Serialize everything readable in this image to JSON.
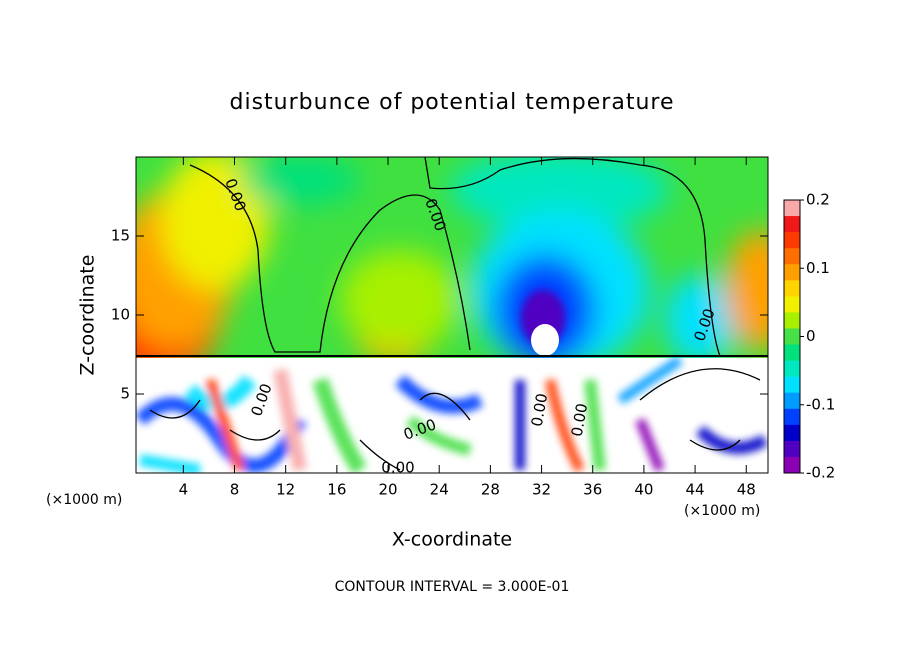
{
  "chart_data": {
    "type": "contour",
    "title": "disturbunce of potential temperature",
    "x_label": "X-coordinate",
    "y_label": "Z-coordinate",
    "x_unit_label": "(×1000 m)",
    "y_unit_label": "(×1000 m)",
    "footer": "CONTOUR INTERVAL = 3.000E-01",
    "xlim": [
      0.3,
      49.7
    ],
    "xticks": [
      4,
      8,
      12,
      16,
      20,
      24,
      28,
      32,
      36,
      40,
      44,
      48
    ],
    "ylim": [
      0,
      20
    ],
    "yticks": [
      5,
      10,
      15
    ],
    "contour_labels": [
      "0.00",
      "0.00",
      "0.00",
      "0.00",
      "0.00",
      "0.00",
      "0.00",
      "0.00"
    ],
    "colorbar": {
      "lim": [
        -0.2,
        0.2
      ],
      "ticks": [
        0.2,
        0.1,
        0,
        -0.1,
        -0.2
      ],
      "colors": [
        "#f8a8a8",
        "#f01818",
        "#ff3a00",
        "#ff6e00",
        "#ffa000",
        "#ffd400",
        "#f0f000",
        "#a8f000",
        "#48e048",
        "#00e07c",
        "#00e8c0",
        "#00e0ff",
        "#009cff",
        "#0040ff",
        "#0000c8",
        "#5000c0",
        "#8c00b4"
      ]
    }
  }
}
